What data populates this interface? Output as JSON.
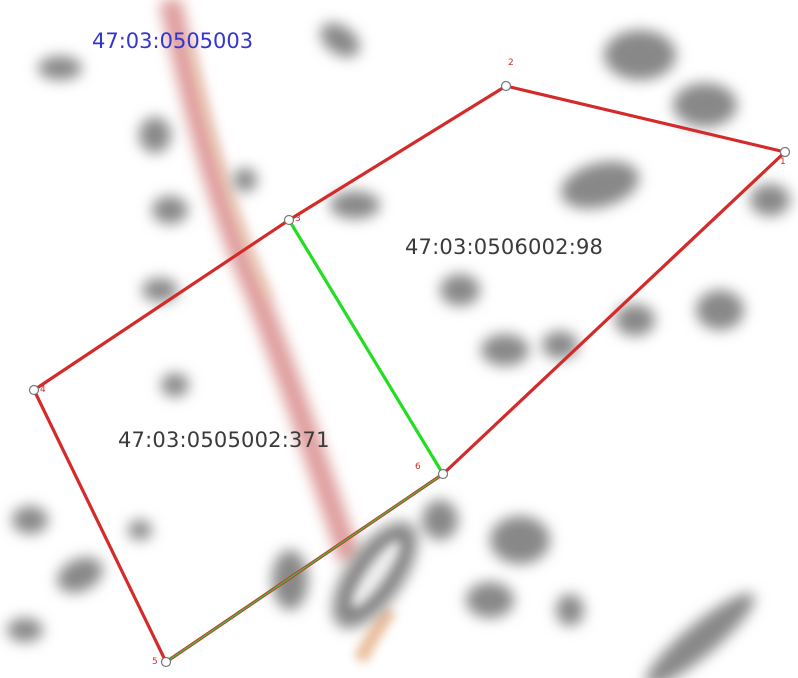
{
  "map": {
    "quarter_label": "47:03:0505003",
    "parcels": [
      {
        "cadastral_number": "47:03:0506002:98"
      },
      {
        "cadastral_number": "47:03:0505002:371"
      }
    ],
    "vertices": [
      "1",
      "2",
      "3",
      "4",
      "5",
      "6"
    ],
    "colors": {
      "boundary": "#d42a2a",
      "shared_boundary": "#22dd22",
      "quarter_label": "#3535d0",
      "parcel_label": "#3a3a3a",
      "vertex_label": "#d0302c",
      "background_buildings": "#888888",
      "road": "#d98a8a"
    }
  }
}
